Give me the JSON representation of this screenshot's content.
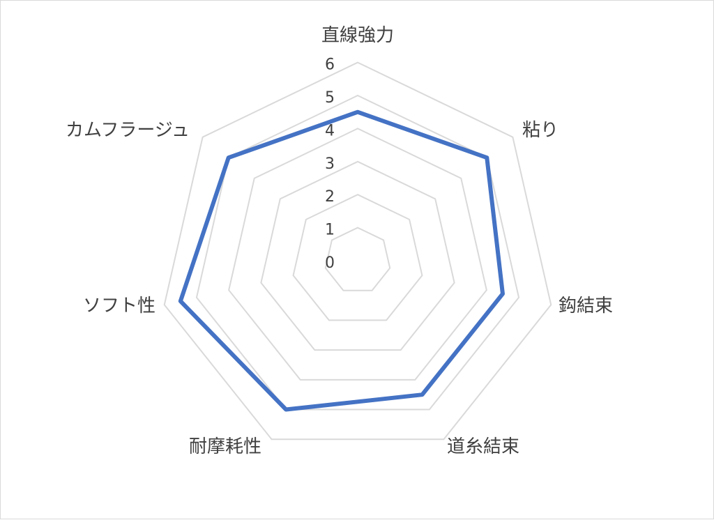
{
  "chart_data": {
    "type": "radar",
    "title": "",
    "categories": [
      "直線強力",
      "粘り",
      "鈎結束",
      "道糸結束",
      "耐摩耗性",
      "ソフト性",
      "カムフラージュ"
    ],
    "series": [
      {
        "values": [
          4.5,
          5.0,
          4.5,
          4.5,
          5.0,
          5.5,
          5.0
        ],
        "color": "#4472c4"
      }
    ],
    "rlim": [
      0,
      6
    ],
    "ticks": [
      "0",
      "1",
      "2",
      "3",
      "4",
      "5",
      "6"
    ],
    "grid": true,
    "grid_color": "#d9d9d9"
  }
}
